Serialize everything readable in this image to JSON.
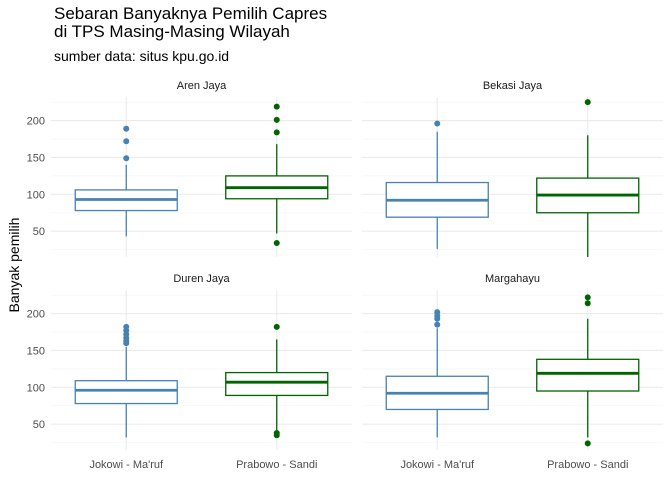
{
  "title_line1": "Sebaran Banyaknya Pemilih Capres",
  "title_line2": "di TPS Masing-Masing Wilayah",
  "subtitle": "sumber data: situs kpu.go.id",
  "colors": {
    "jokowi": "#4682b4",
    "prabowo": "#006400",
    "grid": "#ebebeb"
  },
  "chart_data": {
    "type": "boxplot",
    "ylabel": "Banyak pemilih",
    "xlabel": "",
    "categories": [
      "Jokowi - Ma'ruf",
      "Prabowo - Sandi"
    ],
    "ylim": [
      15,
      232
    ],
    "yticks": [
      50,
      100,
      150,
      200
    ],
    "facets": [
      {
        "title": "Aren Jaya",
        "boxes": [
          {
            "min": 43,
            "q1": 78,
            "median": 93,
            "q3": 106,
            "max": 140,
            "outliers": [
              149,
              172,
              189
            ]
          },
          {
            "min": 47,
            "q1": 94,
            "median": 109,
            "q3": 125,
            "max": 168,
            "outliers": [
              34,
              184,
              201,
              219
            ]
          }
        ]
      },
      {
        "title": "Bekasi Jaya",
        "boxes": [
          {
            "min": 26,
            "q1": 69,
            "median": 92,
            "q3": 116,
            "max": 185,
            "outliers": [
              196
            ]
          },
          {
            "min": 15,
            "q1": 75,
            "median": 99,
            "q3": 122,
            "max": 180,
            "outliers": [
              225
            ]
          }
        ]
      },
      {
        "title": "Duren Jaya",
        "boxes": [
          {
            "min": 32,
            "q1": 78,
            "median": 96,
            "q3": 109,
            "max": 155,
            "outliers": [
              160,
              163,
              167,
              172,
              177,
              182
            ]
          },
          {
            "min": 42,
            "q1": 89,
            "median": 107,
            "q3": 120,
            "max": 165,
            "outliers": [
              35,
              38,
              182
            ]
          }
        ]
      },
      {
        "title": "Margahayu",
        "boxes": [
          {
            "min": 32,
            "q1": 70,
            "median": 92,
            "q3": 115,
            "max": 180,
            "outliers": [
              185,
              193,
              197,
              202
            ]
          },
          {
            "min": 32,
            "q1": 95,
            "median": 119,
            "q3": 138,
            "max": 193,
            "outliers": [
              24,
              214,
              222
            ]
          }
        ]
      }
    ]
  }
}
